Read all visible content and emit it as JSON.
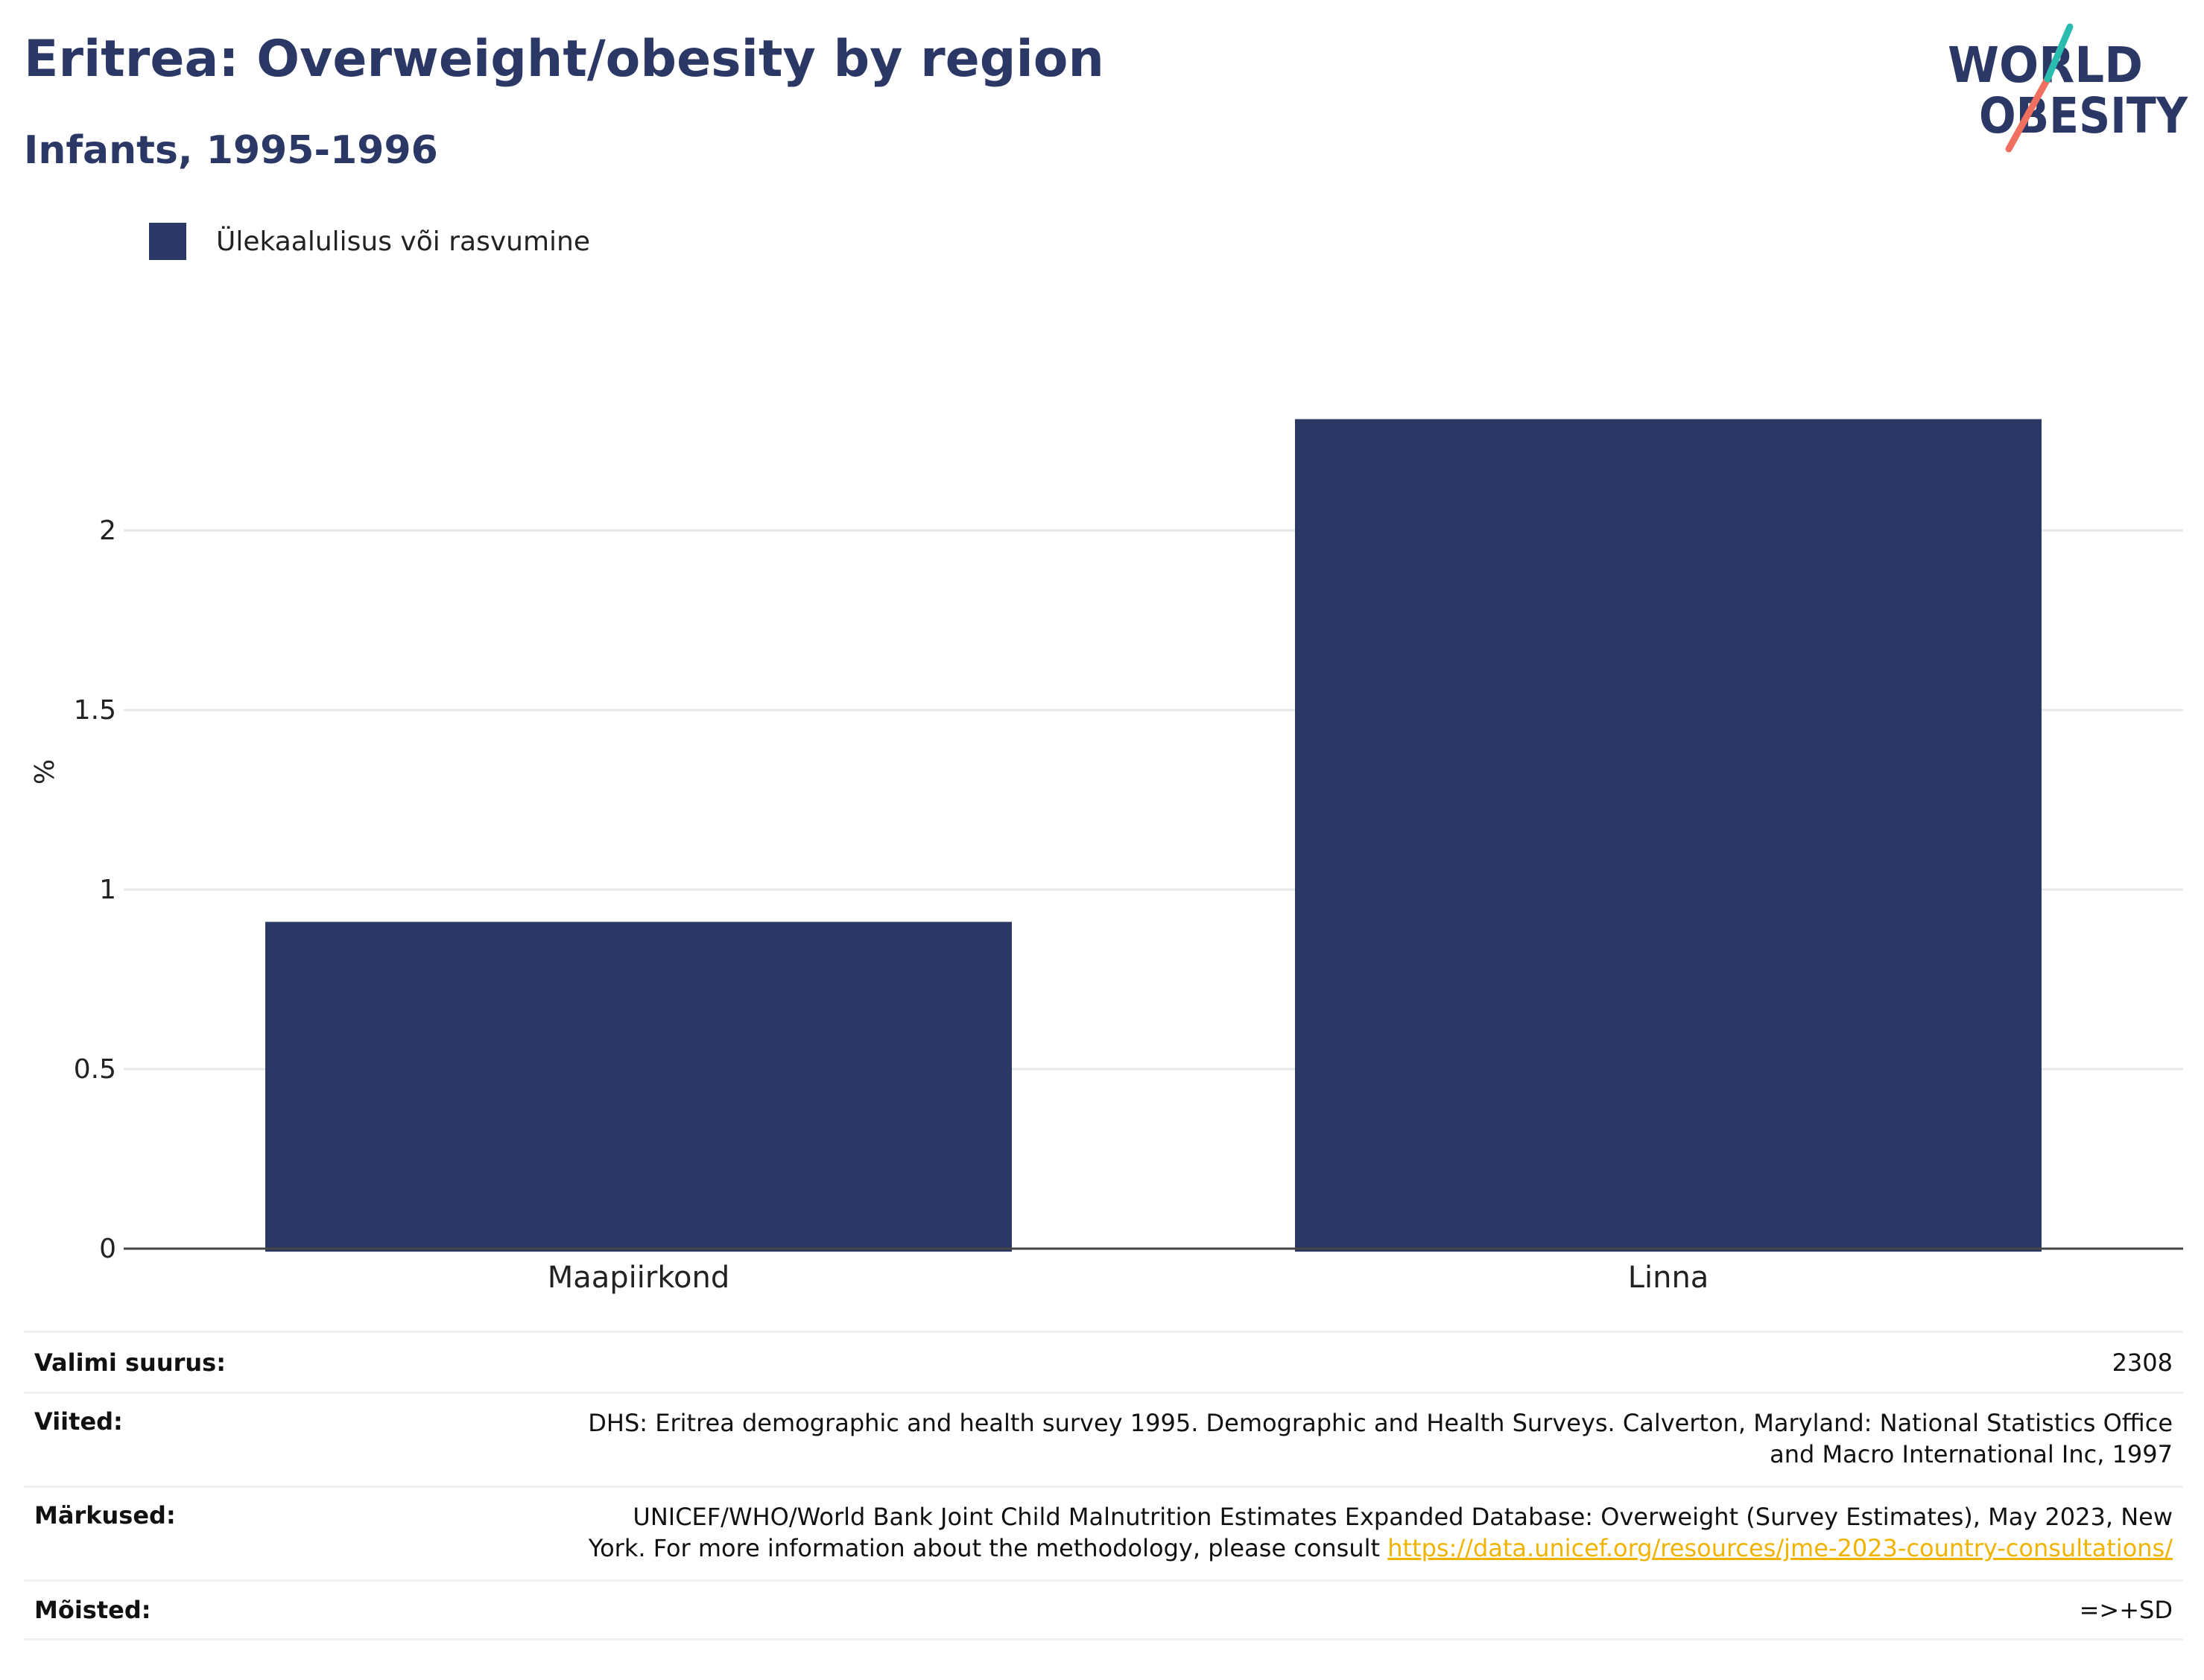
{
  "header": {
    "title": "Eritrea: Overweight/obesity by region",
    "subtitle": "Infants, 1995-1996"
  },
  "logo": {
    "line1": "WORLD",
    "line2": "OBESITY"
  },
  "colors": {
    "bar": "#2b3866",
    "title": "#2b3866",
    "link": "#f0b400",
    "logo_teal": "#2bbcb0",
    "logo_coral": "#f07060"
  },
  "chart_data": {
    "type": "bar",
    "categories": [
      "Maapiirkond",
      "Linna"
    ],
    "series": [
      {
        "name": "Ülekaalulisus või rasvumine",
        "values": [
          0.91,
          2.31
        ]
      }
    ],
    "title": "Eritrea: Overweight/obesity by region",
    "subtitle": "Infants, 1995-1996",
    "xlabel": "",
    "ylabel": "%",
    "ylim": [
      0,
      2.5
    ],
    "yticks": [
      0,
      0.5,
      1,
      1.5,
      2
    ],
    "ytick_labels": [
      "0",
      "0.5",
      "1",
      "1.5",
      "2"
    ],
    "grid": true,
    "legend_position": "top-left"
  },
  "meta": {
    "sample_size": {
      "label": "Valimi suurus:",
      "value": "2308"
    },
    "references": {
      "label": "Viited:",
      "value_line1": "DHS: Eritrea demographic and health survey 1995. Demographic and Health Surveys. Calverton, Maryland: National Statistics Office",
      "value_line2": "and Macro International Inc, 1997"
    },
    "notes": {
      "label": "Märkused:",
      "value_line1": "UNICEF/WHO/World Bank Joint Child Malnutrition Estimates Expanded Database: Overweight (Survey Estimates), May 2023, New",
      "value_line2_prefix": "York. For more information about the methodology, please consult ",
      "link": "https://data.unicef.org/resources/jme-2023-country-consultations/"
    },
    "definitions": {
      "label": "Mõisted:",
      "value": "=>+SD"
    }
  }
}
